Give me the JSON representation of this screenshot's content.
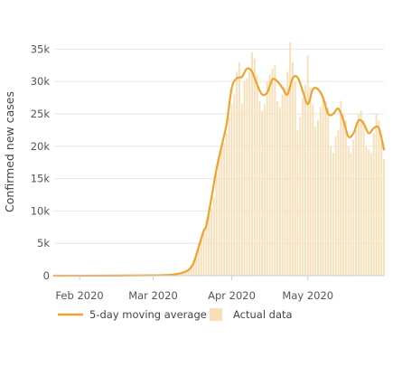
{
  "colors": {
    "bar": "#f9dfb8",
    "line": "#f0a22e",
    "grid": "#e6e6e6",
    "axis": "#cfcfcf",
    "text": "#555555"
  },
  "chart_data": {
    "type": "bar",
    "title": "",
    "xlabel": "",
    "ylabel": "Confirmed new cases",
    "ylim": [
      0,
      37000
    ],
    "yticks": [
      0,
      5000,
      10000,
      15000,
      20000,
      25000,
      30000,
      35000
    ],
    "ytick_labels": [
      "0",
      "5k",
      "10k",
      "15k",
      "20k",
      "25k",
      "30k",
      "35k"
    ],
    "xlim": [
      "2020-01-22",
      "2020-05-31"
    ],
    "xticks": [
      {
        "date": "2020-02-01",
        "label": "Feb 2020"
      },
      {
        "date": "2020-03-01",
        "label": "Mar 2020"
      },
      {
        "date": "2020-04-01",
        "label": "Apr 2020"
      },
      {
        "date": "2020-05-01",
        "label": "May 2020"
      }
    ],
    "grid": true,
    "legend_position": "bottom",
    "series": [
      {
        "name": "5-day moving average",
        "type": "line",
        "points": [
          [
            "2020-01-22",
            0
          ],
          [
            "2020-02-15",
            20
          ],
          [
            "2020-03-01",
            60
          ],
          [
            "2020-03-08",
            150
          ],
          [
            "2020-03-12",
            400
          ],
          [
            "2020-03-15",
            900
          ],
          [
            "2020-03-17",
            2000
          ],
          [
            "2020-03-19",
            4500
          ],
          [
            "2020-03-21",
            7000
          ],
          [
            "2020-03-22",
            7800
          ],
          [
            "2020-03-24",
            12000
          ],
          [
            "2020-03-26",
            16500
          ],
          [
            "2020-03-28",
            20000
          ],
          [
            "2020-03-30",
            23500
          ],
          [
            "2020-04-01",
            29000
          ],
          [
            "2020-04-03",
            30500
          ],
          [
            "2020-04-05",
            30700
          ],
          [
            "2020-04-07",
            32000
          ],
          [
            "2020-04-09",
            31500
          ],
          [
            "2020-04-11",
            29500
          ],
          [
            "2020-04-13",
            28000
          ],
          [
            "2020-04-15",
            28300
          ],
          [
            "2020-04-17",
            30300
          ],
          [
            "2020-04-19",
            30000
          ],
          [
            "2020-04-21",
            29000
          ],
          [
            "2020-04-23",
            28000
          ],
          [
            "2020-04-25",
            30500
          ],
          [
            "2020-04-27",
            30600
          ],
          [
            "2020-04-29",
            28500
          ],
          [
            "2020-05-01",
            26500
          ],
          [
            "2020-05-03",
            28800
          ],
          [
            "2020-05-05",
            28800
          ],
          [
            "2020-05-07",
            27500
          ],
          [
            "2020-05-09",
            25000
          ],
          [
            "2020-05-11",
            25000
          ],
          [
            "2020-05-13",
            25800
          ],
          [
            "2020-05-15",
            24000
          ],
          [
            "2020-05-17",
            21500
          ],
          [
            "2020-05-19",
            22000
          ],
          [
            "2020-05-21",
            24000
          ],
          [
            "2020-05-23",
            23500
          ],
          [
            "2020-05-25",
            22000
          ],
          [
            "2020-05-27",
            22800
          ],
          [
            "2020-05-29",
            22800
          ],
          [
            "2020-05-31",
            19500
          ]
        ]
      },
      {
        "name": "Actual data",
        "type": "bar",
        "points": [
          [
            "2020-03-01",
            10
          ],
          [
            "2020-03-02",
            20
          ],
          [
            "2020-03-03",
            30
          ],
          [
            "2020-03-04",
            40
          ],
          [
            "2020-03-05",
            60
          ],
          [
            "2020-03-06",
            100
          ],
          [
            "2020-03-07",
            130
          ],
          [
            "2020-03-08",
            160
          ],
          [
            "2020-03-09",
            250
          ],
          [
            "2020-03-10",
            300
          ],
          [
            "2020-03-11",
            400
          ],
          [
            "2020-03-12",
            500
          ],
          [
            "2020-03-13",
            600
          ],
          [
            "2020-03-14",
            800
          ],
          [
            "2020-03-15",
            1000
          ],
          [
            "2020-03-16",
            1600
          ],
          [
            "2020-03-17",
            2500
          ],
          [
            "2020-03-18",
            3500
          ],
          [
            "2020-03-19",
            5000
          ],
          [
            "2020-03-20",
            6000
          ],
          [
            "2020-03-21",
            7000
          ],
          [
            "2020-03-22",
            8500
          ],
          [
            "2020-03-23",
            10000
          ],
          [
            "2020-03-24",
            10500
          ],
          [
            "2020-03-25",
            12000
          ],
          [
            "2020-03-26",
            17000
          ],
          [
            "2020-03-27",
            18500
          ],
          [
            "2020-03-28",
            19500
          ],
          [
            "2020-03-29",
            20500
          ],
          [
            "2020-03-30",
            22000
          ],
          [
            "2020-03-31",
            24500
          ],
          [
            "2020-04-01",
            26500
          ],
          [
            "2020-04-02",
            28000
          ],
          [
            "2020-04-03",
            31500
          ],
          [
            "2020-04-04",
            33000
          ],
          [
            "2020-04-05",
            26500
          ],
          [
            "2020-04-06",
            30000
          ],
          [
            "2020-04-07",
            30500
          ],
          [
            "2020-04-08",
            31500
          ],
          [
            "2020-04-09",
            34500
          ],
          [
            "2020-04-10",
            33500
          ],
          [
            "2020-04-11",
            31000
          ],
          [
            "2020-04-12",
            27000
          ],
          [
            "2020-04-13",
            25500
          ],
          [
            "2020-04-14",
            26500
          ],
          [
            "2020-04-15",
            30000
          ],
          [
            "2020-04-16",
            31000
          ],
          [
            "2020-04-17",
            32000
          ],
          [
            "2020-04-18",
            32500
          ],
          [
            "2020-04-19",
            27000
          ],
          [
            "2020-04-20",
            26000
          ],
          [
            "2020-04-21",
            28000
          ],
          [
            "2020-04-22",
            29000
          ],
          [
            "2020-04-23",
            31500
          ],
          [
            "2020-04-24",
            36000
          ],
          [
            "2020-04-25",
            33000
          ],
          [
            "2020-04-26",
            30000
          ],
          [
            "2020-04-27",
            22500
          ],
          [
            "2020-04-28",
            24500
          ],
          [
            "2020-04-29",
            27500
          ],
          [
            "2020-04-30",
            29500
          ],
          [
            "2020-05-01",
            34000
          ],
          [
            "2020-05-02",
            29000
          ],
          [
            "2020-05-03",
            26500
          ],
          [
            "2020-05-04",
            23000
          ],
          [
            "2020-05-05",
            24000
          ],
          [
            "2020-05-06",
            26000
          ],
          [
            "2020-05-07",
            27500
          ],
          [
            "2020-05-08",
            27000
          ],
          [
            "2020-05-09",
            26000
          ],
          [
            "2020-05-10",
            20000
          ],
          [
            "2020-05-11",
            19000
          ],
          [
            "2020-05-12",
            21500
          ],
          [
            "2020-05-13",
            22500
          ],
          [
            "2020-05-14",
            27000
          ],
          [
            "2020-05-15",
            25000
          ],
          [
            "2020-05-16",
            24000
          ],
          [
            "2020-05-17",
            20000
          ],
          [
            "2020-05-18",
            19000
          ],
          [
            "2020-05-19",
            21000
          ],
          [
            "2020-05-20",
            22500
          ],
          [
            "2020-05-21",
            25000
          ],
          [
            "2020-05-22",
            25500
          ],
          [
            "2020-05-23",
            24000
          ],
          [
            "2020-05-24",
            20000
          ],
          [
            "2020-05-25",
            19500
          ],
          [
            "2020-05-26",
            19000
          ],
          [
            "2020-05-27",
            22000
          ],
          [
            "2020-05-28",
            25000
          ],
          [
            "2020-05-29",
            24000
          ],
          [
            "2020-05-30",
            21000
          ],
          [
            "2020-05-31",
            18000
          ]
        ]
      }
    ],
    "legend": [
      {
        "label": "5-day moving average",
        "kind": "line"
      },
      {
        "label": "Actual data",
        "kind": "bar"
      }
    ]
  }
}
